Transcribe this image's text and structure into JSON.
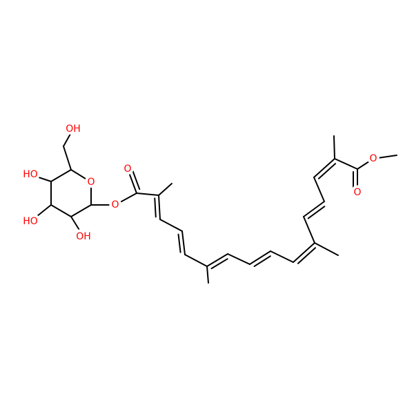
{
  "atoms": [
    {
      "label": "OH"
    },
    {
      "label": "HO"
    },
    {
      "label": "HO"
    },
    {
      "label": "OH"
    },
    {
      "label": "O"
    },
    {
      "label": "O"
    },
    {
      "label": "O"
    },
    {
      "label": "O"
    },
    {
      "label": "O"
    }
  ]
}
